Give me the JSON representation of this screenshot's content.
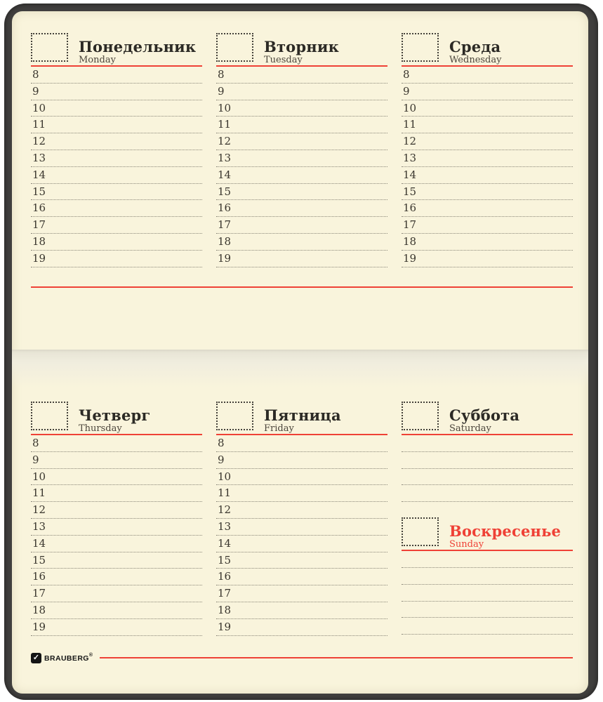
{
  "colors": {
    "page_bg": "#f9f4dc",
    "cover": "#403f3e",
    "accent_red": "#ef4136",
    "line_gray": "#8b8779",
    "ink": "#2c2a25",
    "ink_soft": "#4c463c"
  },
  "hours": [
    "8",
    "9",
    "10",
    "11",
    "12",
    "13",
    "14",
    "15",
    "16",
    "17",
    "18",
    "19"
  ],
  "saturday_blank_rows": 4,
  "sunday_blank_rows": 5,
  "days": [
    {
      "id": "monday",
      "ru": "Понедельник",
      "en": "Monday"
    },
    {
      "id": "tuesday",
      "ru": "Вторник",
      "en": "Tuesday"
    },
    {
      "id": "wednesday",
      "ru": "Среда",
      "en": "Wednesday"
    },
    {
      "id": "thursday",
      "ru": "Четверг",
      "en": "Thursday"
    },
    {
      "id": "friday",
      "ru": "Пятница",
      "en": "Friday"
    },
    {
      "id": "saturday",
      "ru": "Суббота",
      "en": "Saturday"
    },
    {
      "id": "sunday",
      "ru": "Воскресенье",
      "en": "Sunday"
    }
  ],
  "brand": {
    "name": "BRAUBERG",
    "registered": "®",
    "checkmark": "✓"
  }
}
